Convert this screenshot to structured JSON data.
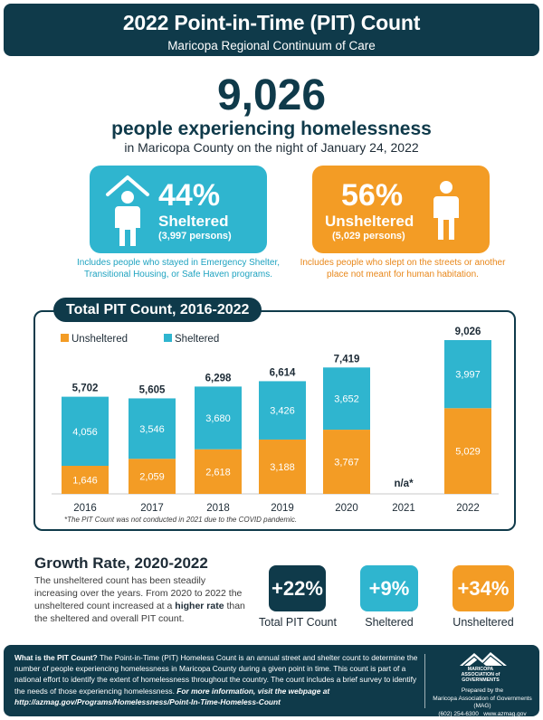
{
  "header": {
    "title": "2022 Point-in-Time (PIT) Count",
    "subtitle": "Maricopa Regional Continuum of Care"
  },
  "headline": {
    "number": "9,026",
    "people_text": "people experiencing homelessness",
    "location_text": "in Maricopa County on the night of January 24, 2022"
  },
  "sheltered_card": {
    "percent": "44%",
    "label": "Sheltered",
    "count": "(3,997 persons)",
    "note": "Includes people who stayed in Emergency Shelter, Transitional Housing, or Safe Haven programs.",
    "color": "#2fb5cf"
  },
  "unsheltered_card": {
    "percent": "56%",
    "label": "Unsheltered",
    "count": "(5,029 persons)",
    "note": "Includes people who slept on the streets or another place not meant for human habitation.",
    "color": "#f39c25"
  },
  "chart_data": {
    "type": "bar",
    "stacked": true,
    "title": "Total PIT Count, 2016-2022",
    "categories": [
      "2016",
      "2017",
      "2018",
      "2019",
      "2020",
      "2021",
      "2022"
    ],
    "series": [
      {
        "name": "Unsheltered",
        "color": "#f39c25",
        "values": [
          1646,
          2059,
          2618,
          3188,
          3767,
          null,
          5029
        ]
      },
      {
        "name": "Sheltered",
        "color": "#2fb5cf",
        "values": [
          4056,
          3546,
          3680,
          3426,
          3652,
          null,
          3997
        ]
      }
    ],
    "totals": [
      "5,702",
      "5,605",
      "6,298",
      "6,614",
      "7,419",
      "n/a*",
      "9,026"
    ],
    "segment_labels": {
      "Unsheltered": [
        "1,646",
        "2,059",
        "2,618",
        "3,188",
        "3,767",
        "",
        "5,029"
      ],
      "Sheltered": [
        "4,056",
        "3,546",
        "3,680",
        "3,426",
        "3,652",
        "",
        "3,997"
      ]
    },
    "ylim": [
      0,
      9026
    ],
    "legend": "top-left",
    "footnote": "*The PIT Count was not conducted in 2021 due to the COVID pandemic."
  },
  "growth": {
    "title": "Growth Rate, 2020-2022",
    "desc_before": "The unsheltered count has been steadily increasing over the years. From 2020 to 2022 the unsheltered count increased at a ",
    "desc_bold": "higher rate",
    "desc_after": " than the sheltered and overall PIT count.",
    "total": {
      "value": "+22%",
      "label": "Total PIT Count"
    },
    "sheltered": {
      "value": "+9%",
      "label": "Sheltered"
    },
    "unsheltered": {
      "value": "+34%",
      "label": "Unsheltered"
    }
  },
  "footer": {
    "q_bold": "What is the PIT Count?",
    "body": " The Point-in-Time (PIT) Homeless Count is an annual street and shelter count to determine the number of people experiencing homelessness in Maricopa County during a given point in time. This count is part of a national effort to identify the extent of homelessness throughout the country. The count includes a brief survey to identify the needs of those experiencing homelessness. ",
    "more_bold": "For more information, visit the webpage at http://azmag.gov/Programs/Homelessness/Point-In-Time-Homeless-Count",
    "org_line1": "MARICOPA",
    "org_line2": "ASSOCIATION of",
    "org_line3": "GOVERNMENTS",
    "prepared_by": "Prepared by the",
    "prepared_org": "Maricopa Association of Governments (MAG)",
    "phone": "(602) 254-6300",
    "website": "www.azmag.gov"
  },
  "colors": {
    "navy": "#0f3a4a",
    "teal": "#2fb5cf",
    "orange": "#f39c25"
  }
}
